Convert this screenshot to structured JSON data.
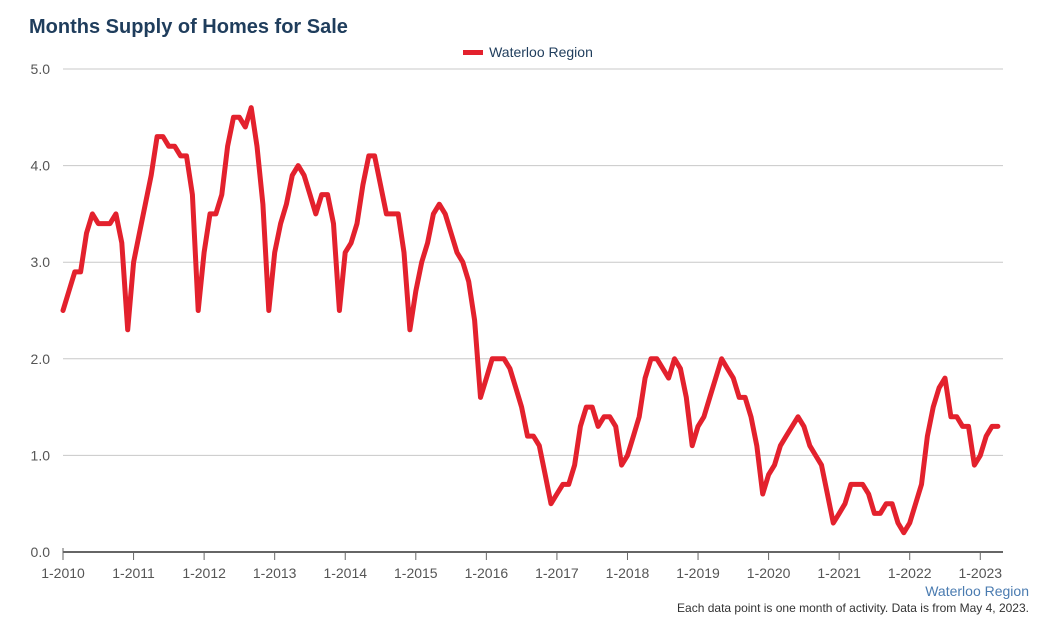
{
  "chart_data": {
    "type": "line",
    "title": "Months Supply of Homes for Sale",
    "xlabel": "",
    "ylabel": "",
    "ylim": [
      0,
      5
    ],
    "yticks": [
      "0.0",
      "1.0",
      "2.0",
      "3.0",
      "4.0",
      "5.0"
    ],
    "xticks": [
      "1-2010",
      "1-2011",
      "1-2012",
      "1-2013",
      "1-2014",
      "1-2015",
      "1-2016",
      "1-2017",
      "1-2018",
      "1-2019",
      "1-2020",
      "1-2021",
      "1-2022",
      "1-2023"
    ],
    "grid": true,
    "legend_position": "top-center",
    "series": [
      {
        "name": "Waterloo Region",
        "color": "#e3212d",
        "start": "1-2010",
        "end": "4-2023",
        "values": [
          2.5,
          2.7,
          2.9,
          2.9,
          3.3,
          3.5,
          3.4,
          3.4,
          3.4,
          3.5,
          3.2,
          2.3,
          3.0,
          3.3,
          3.6,
          3.9,
          4.3,
          4.3,
          4.2,
          4.2,
          4.1,
          4.1,
          3.7,
          2.5,
          3.1,
          3.5,
          3.5,
          3.7,
          4.2,
          4.5,
          4.5,
          4.4,
          4.6,
          4.2,
          3.6,
          2.5,
          3.1,
          3.4,
          3.6,
          3.9,
          4.0,
          3.9,
          3.7,
          3.5,
          3.7,
          3.7,
          3.4,
          2.5,
          3.1,
          3.2,
          3.4,
          3.8,
          4.1,
          4.1,
          3.8,
          3.5,
          3.5,
          3.5,
          3.1,
          2.3,
          2.7,
          3.0,
          3.2,
          3.5,
          3.6,
          3.5,
          3.3,
          3.1,
          3.0,
          2.8,
          2.4,
          1.6,
          1.8,
          2.0,
          2.0,
          2.0,
          1.9,
          1.7,
          1.5,
          1.2,
          1.2,
          1.1,
          0.8,
          0.5,
          0.6,
          0.7,
          0.7,
          0.9,
          1.3,
          1.5,
          1.5,
          1.3,
          1.4,
          1.4,
          1.3,
          0.9,
          1.0,
          1.2,
          1.4,
          1.8,
          2.0,
          2.0,
          1.9,
          1.8,
          2.0,
          1.9,
          1.6,
          1.1,
          1.3,
          1.4,
          1.6,
          1.8,
          2.0,
          1.9,
          1.8,
          1.6,
          1.6,
          1.4,
          1.1,
          0.6,
          0.8,
          0.9,
          1.1,
          1.2,
          1.3,
          1.4,
          1.3,
          1.1,
          1.0,
          0.9,
          0.6,
          0.3,
          0.4,
          0.5,
          0.7,
          0.7,
          0.7,
          0.6,
          0.4,
          0.4,
          0.5,
          0.5,
          0.3,
          0.2,
          0.3,
          0.5,
          0.7,
          1.2,
          1.5,
          1.7,
          1.8,
          1.4,
          1.4,
          1.3,
          1.3,
          0.9,
          1.0,
          1.2,
          1.3,
          1.3
        ]
      }
    ],
    "source_label": "Waterloo Region",
    "footnote": "Each data point is one month of activity. Data is from May 4, 2023."
  }
}
